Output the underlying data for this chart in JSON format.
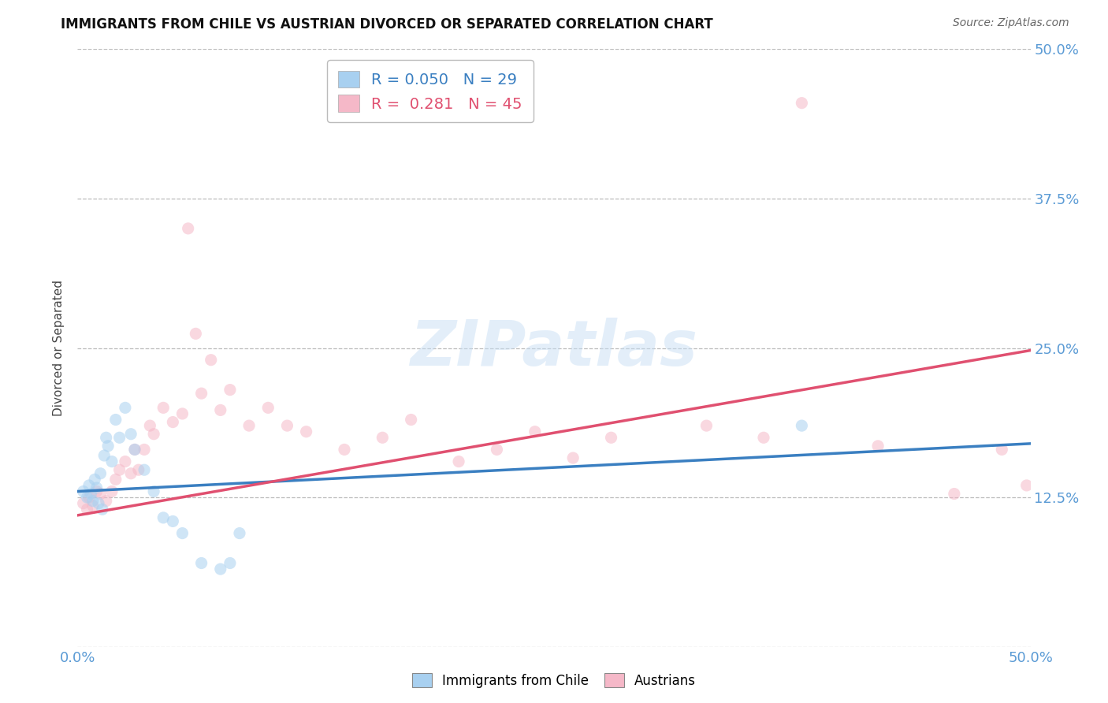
{
  "title": "IMMIGRANTS FROM CHILE VS AUSTRIAN DIVORCED OR SEPARATED CORRELATION CHART",
  "source_text": "Source: ZipAtlas.com",
  "ylabel": "Divorced or Separated",
  "x_min": 0.0,
  "x_max": 0.5,
  "y_min": 0.0,
  "y_max": 0.5,
  "x_ticks": [
    0.0,
    0.5
  ],
  "x_tick_labels": [
    "0.0%",
    "50.0%"
  ],
  "y_ticks": [
    0.0,
    0.125,
    0.25,
    0.375,
    0.5
  ],
  "y_tick_labels": [
    "",
    "12.5%",
    "25.0%",
    "37.5%",
    "50.0%"
  ],
  "grid_color": "#bbbbbb",
  "background_color": "#ffffff",
  "watermark_text": "ZIPatlas",
  "legend_r1": "R = 0.050",
  "legend_n1": "N = 29",
  "legend_r2": "R =  0.281",
  "legend_n2": "N = 45",
  "series1_color": "#a8d0f0",
  "series2_color": "#f5b8c8",
  "line1_color": "#3a7fc1",
  "line2_color": "#e05070",
  "title_color": "#111111",
  "axis_label_color": "#444444",
  "tick_label_color": "#5b9bd5",
  "source_color": "#666666",
  "blue_scatter_x": [
    0.003,
    0.005,
    0.006,
    0.007,
    0.008,
    0.009,
    0.01,
    0.011,
    0.012,
    0.013,
    0.014,
    0.015,
    0.016,
    0.018,
    0.02,
    0.022,
    0.025,
    0.028,
    0.03,
    0.035,
    0.04,
    0.045,
    0.05,
    0.055,
    0.065,
    0.075,
    0.08,
    0.085,
    0.38
  ],
  "blue_scatter_y": [
    0.13,
    0.125,
    0.135,
    0.128,
    0.122,
    0.14,
    0.133,
    0.12,
    0.145,
    0.115,
    0.16,
    0.175,
    0.168,
    0.155,
    0.19,
    0.175,
    0.2,
    0.178,
    0.165,
    0.148,
    0.13,
    0.108,
    0.105,
    0.095,
    0.07,
    0.065,
    0.07,
    0.095,
    0.185
  ],
  "pink_scatter_x": [
    0.003,
    0.005,
    0.006,
    0.008,
    0.01,
    0.012,
    0.015,
    0.018,
    0.02,
    0.022,
    0.025,
    0.028,
    0.03,
    0.032,
    0.035,
    0.038,
    0.04,
    0.045,
    0.05,
    0.055,
    0.058,
    0.062,
    0.065,
    0.07,
    0.075,
    0.08,
    0.09,
    0.1,
    0.11,
    0.12,
    0.14,
    0.16,
    0.175,
    0.2,
    0.22,
    0.24,
    0.26,
    0.28,
    0.33,
    0.36,
    0.38,
    0.42,
    0.46,
    0.485,
    0.498
  ],
  "pink_scatter_y": [
    0.12,
    0.115,
    0.125,
    0.118,
    0.13,
    0.128,
    0.122,
    0.13,
    0.14,
    0.148,
    0.155,
    0.145,
    0.165,
    0.148,
    0.165,
    0.185,
    0.178,
    0.2,
    0.188,
    0.195,
    0.35,
    0.262,
    0.212,
    0.24,
    0.198,
    0.215,
    0.185,
    0.2,
    0.185,
    0.18,
    0.165,
    0.175,
    0.19,
    0.155,
    0.165,
    0.18,
    0.158,
    0.175,
    0.185,
    0.175,
    0.455,
    0.168,
    0.128,
    0.165,
    0.135
  ],
  "blue_line_x0": 0.0,
  "blue_line_y0": 0.13,
  "blue_line_x1": 0.5,
  "blue_line_y1": 0.17,
  "pink_line_x0": 0.0,
  "pink_line_y0": 0.11,
  "pink_line_x1": 0.5,
  "pink_line_y1": 0.248,
  "marker_size": 120,
  "marker_alpha": 0.55,
  "title_fontsize": 12,
  "source_fontsize": 10,
  "tick_fontsize": 13,
  "ylabel_fontsize": 11,
  "legend_fontsize": 14
}
